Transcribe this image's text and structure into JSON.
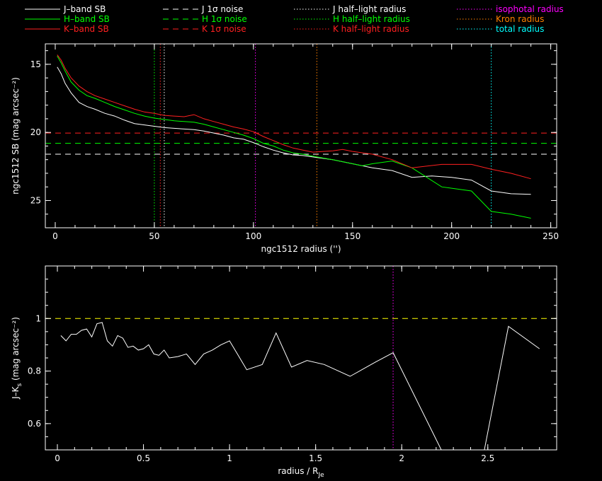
{
  "colors": {
    "j": "#ffffff",
    "h": "#00ff00",
    "k": "#ff2020",
    "magenta": "#ff00ff",
    "orange": "#ff8000",
    "cyan": "#00ffff",
    "yellow": "#ffff00",
    "background": "#000000",
    "axes": "#ffffff"
  },
  "legend": [
    {
      "label": "J–band SB",
      "style": "solid",
      "color": "#ffffff"
    },
    {
      "label": "H–band SB",
      "style": "solid",
      "color": "#00ff00"
    },
    {
      "label": "K–band SB",
      "style": "solid",
      "color": "#ff2020"
    },
    {
      "label": "J 1σ noise",
      "style": "dashed",
      "color": "#ffffff"
    },
    {
      "label": "H 1σ noise",
      "style": "dashed",
      "color": "#00ff00"
    },
    {
      "label": "K 1σ noise",
      "style": "dashed",
      "color": "#ff2020"
    },
    {
      "label": "J half–light radius",
      "style": "dotted",
      "color": "#ffffff"
    },
    {
      "label": "H half–light radius",
      "style": "dotted",
      "color": "#00ff00"
    },
    {
      "label": "K half–light radius",
      "style": "dotted",
      "color": "#ff2020"
    },
    {
      "label": "isophotal radius",
      "style": "dotted",
      "color": "#ff00ff"
    },
    {
      "label": "Kron radius",
      "style": "dotted",
      "color": "#ff8000"
    },
    {
      "label": "total radius",
      "style": "dotted",
      "color": "#00ffff"
    }
  ],
  "chart_data": [
    {
      "type": "line",
      "xlabel": "ngc1512 radius ('')",
      "ylabel": "ngc1512 SB (mag arcsec⁻²)",
      "xlim": [
        -5,
        253
      ],
      "ylim": [
        27,
        13.5
      ],
      "y_inverted": true,
      "xticks": [
        0,
        50,
        100,
        150,
        200,
        250
      ],
      "yticks": [
        15,
        20,
        25
      ],
      "series": [
        {
          "name": "J–band SB",
          "color": "#ffffff",
          "x": [
            1,
            3,
            5,
            8,
            12,
            16,
            20,
            25,
            30,
            35,
            40,
            45,
            50,
            55,
            60,
            65,
            70,
            75,
            80,
            85,
            90,
            95,
            100,
            105,
            110,
            115,
            120,
            125,
            130,
            140,
            150,
            160,
            170,
            180,
            190,
            200,
            210,
            220,
            230,
            240
          ],
          "y": [
            15.2,
            15.7,
            16.4,
            17.1,
            17.8,
            18.1,
            18.3,
            18.6,
            18.8,
            19.1,
            19.35,
            19.45,
            19.55,
            19.65,
            19.7,
            19.75,
            19.8,
            19.9,
            20.05,
            20.2,
            20.4,
            20.5,
            20.75,
            21.05,
            21.3,
            21.5,
            21.65,
            21.7,
            21.8,
            22.0,
            22.3,
            22.6,
            22.8,
            23.3,
            23.2,
            23.3,
            23.5,
            24.3,
            24.5,
            24.55
          ]
        },
        {
          "name": "H–band SB",
          "color": "#00ff00",
          "x": [
            1,
            3,
            5,
            8,
            12,
            16,
            20,
            25,
            30,
            35,
            40,
            45,
            50,
            55,
            60,
            65,
            70,
            75,
            80,
            85,
            90,
            95,
            100,
            105,
            110,
            115,
            120,
            125,
            130,
            140,
            150,
            155,
            160,
            170,
            180,
            195,
            210,
            220,
            230,
            240
          ],
          "y": [
            14.4,
            14.9,
            15.5,
            16.3,
            16.9,
            17.3,
            17.5,
            17.8,
            18.1,
            18.35,
            18.6,
            18.8,
            18.95,
            19.05,
            19.15,
            19.2,
            19.25,
            19.4,
            19.6,
            19.8,
            20.0,
            20.2,
            20.45,
            20.8,
            21.0,
            21.3,
            21.5,
            21.6,
            21.75,
            22.0,
            22.3,
            22.45,
            22.3,
            22.1,
            22.6,
            24.0,
            24.3,
            25.8,
            26.0,
            26.3
          ]
        },
        {
          "name": "K–band SB",
          "color": "#ff2020",
          "x": [
            1,
            3,
            5,
            8,
            12,
            16,
            20,
            25,
            30,
            35,
            40,
            45,
            50,
            55,
            60,
            65,
            70,
            75,
            80,
            85,
            90,
            95,
            100,
            105,
            110,
            115,
            120,
            125,
            130,
            140,
            145,
            150,
            160,
            170,
            180,
            195,
            210,
            220,
            230,
            240
          ],
          "y": [
            14.3,
            14.7,
            15.3,
            16.0,
            16.6,
            17.0,
            17.3,
            17.55,
            17.8,
            18.05,
            18.3,
            18.5,
            18.6,
            18.75,
            18.8,
            18.85,
            18.7,
            19.0,
            19.2,
            19.4,
            19.6,
            19.75,
            19.95,
            20.3,
            20.6,
            20.9,
            21.15,
            21.3,
            21.45,
            21.35,
            21.25,
            21.4,
            21.6,
            22.0,
            22.6,
            22.35,
            22.35,
            22.7,
            23.0,
            23.4
          ]
        }
      ],
      "noise_levels": [
        {
          "name": "J 1σ noise",
          "color": "#ffffff",
          "y": 21.6
        },
        {
          "name": "H 1σ noise",
          "color": "#00ff00",
          "y": 20.8
        },
        {
          "name": "K 1σ noise",
          "color": "#ff2020",
          "y": 20.05
        }
      ],
      "radius_markers": [
        {
          "name": "H half–light radius",
          "color": "#00ff00",
          "x": 50
        },
        {
          "name": "K half–light radius",
          "color": "#ff2020",
          "x": 53
        },
        {
          "name": "J half–light radius",
          "color": "#ffffff",
          "x": 55
        },
        {
          "name": "isophotal radius",
          "color": "#ff00ff",
          "x": 101
        },
        {
          "name": "Kron radius",
          "color": "#ff8000",
          "x": 132
        },
        {
          "name": "total radius",
          "color": "#00ffff",
          "x": 220
        }
      ]
    },
    {
      "type": "line",
      "xlabel": "radius / R",
      "xlabel_subscript": "Je",
      "ylabel": "J–K",
      "ylabel_subscript": "s",
      "ylabel_suffix": " (mag arcsec⁻²)",
      "xlim": [
        -0.07,
        2.9
      ],
      "ylim": [
        0.5,
        1.2
      ],
      "xticks": [
        0,
        0.5,
        1,
        1.5,
        2,
        2.5
      ],
      "xtick_labels": [
        "0",
        "0.5",
        "1",
        "1.5",
        "2",
        "2.5"
      ],
      "yticks": [
        0.6,
        0.8,
        1
      ],
      "ytick_labels": [
        "0.6",
        "0.8",
        "1"
      ],
      "series": [
        {
          "name": "J–K",
          "color": "#ffffff",
          "x": [
            0.02,
            0.05,
            0.08,
            0.11,
            0.14,
            0.17,
            0.2,
            0.23,
            0.26,
            0.29,
            0.32,
            0.35,
            0.38,
            0.41,
            0.44,
            0.47,
            0.5,
            0.53,
            0.56,
            0.59,
            0.62,
            0.65,
            0.7,
            0.75,
            0.8,
            0.85,
            0.9,
            0.95,
            1.0,
            1.05,
            1.1,
            1.19,
            1.27,
            1.36,
            1.45,
            1.55,
            1.7,
            1.85,
            1.95,
            2.23,
            2.37,
            2.48,
            2.62,
            2.8
          ],
          "y": [
            0.935,
            0.915,
            0.94,
            0.94,
            0.955,
            0.96,
            0.93,
            0.98,
            0.985,
            0.915,
            0.895,
            0.935,
            0.925,
            0.89,
            0.895,
            0.88,
            0.885,
            0.9,
            0.865,
            0.86,
            0.88,
            0.85,
            0.855,
            0.865,
            0.825,
            0.865,
            0.88,
            0.9,
            0.915,
            0.86,
            0.805,
            0.825,
            0.945,
            0.815,
            0.84,
            0.825,
            0.78,
            0.835,
            0.87,
            0.5,
            0.5,
            0.5,
            0.97,
            0.885
          ]
        }
      ],
      "reference_level": {
        "color": "#ffff00",
        "y": 1.0
      },
      "radius_markers": [
        {
          "name": "isophotal radius",
          "color": "#ff00ff",
          "x": 1.95
        }
      ]
    }
  ]
}
